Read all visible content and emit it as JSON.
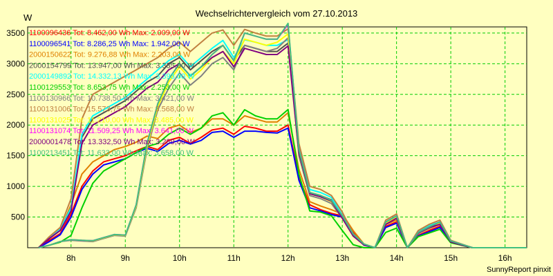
{
  "chart_data": {
    "type": "line",
    "title": "Wechselrichtervergleich vom 27.10.2013",
    "ylabel": "W",
    "footer": "SunnyReport pinxit",
    "ylim": [
      0,
      3600
    ],
    "xlim": [
      7.2,
      16.4
    ],
    "yticks": [
      500,
      1000,
      1500,
      2000,
      2500,
      3000,
      3500
    ],
    "xticks": [
      {
        "value": 8,
        "label": "8h"
      },
      {
        "value": 9,
        "label": "9h"
      },
      {
        "value": 10,
        "label": "10h"
      },
      {
        "value": 11,
        "label": "11h"
      },
      {
        "value": 12,
        "label": "12h"
      },
      {
        "value": 13,
        "label": "13h"
      },
      {
        "value": 14,
        "label": "14h"
      },
      {
        "value": 15,
        "label": "15h"
      },
      {
        "value": 16,
        "label": "16h"
      }
    ],
    "grid": true,
    "legend_position": "top-left",
    "x": [
      7.4,
      7.6,
      7.8,
      8.0,
      8.2,
      8.4,
      8.6,
      8.8,
      9.0,
      9.2,
      9.4,
      9.6,
      9.8,
      10.0,
      10.2,
      10.4,
      10.6,
      10.8,
      11.0,
      11.2,
      11.4,
      11.6,
      11.8,
      12.0,
      12.2,
      12.4,
      12.6,
      12.8,
      13.0,
      13.2,
      13.4,
      13.6,
      13.8,
      14.0,
      14.2,
      14.4,
      14.6,
      14.8,
      15.0,
      15.2,
      15.4,
      15.6,
      15.8,
      16.0,
      16.2,
      16.4
    ],
    "series": [
      {
        "name": "1100096436",
        "label": "1100096436 Tot: 8.462,00 Wh Max: 2.009,00 W",
        "color": "#ff0000",
        "values": [
          0,
          120,
          230,
          550,
          1000,
          1250,
          1400,
          1450,
          1500,
          1580,
          1650,
          1600,
          1750,
          1800,
          1700,
          1800,
          1920,
          1950,
          1850,
          1980,
          1950,
          1900,
          1900,
          2000,
          1150,
          700,
          620,
          560,
          520,
          250,
          50,
          0,
          350,
          420,
          0,
          200,
          280,
          350,
          100,
          50,
          0,
          0,
          0,
          0,
          0,
          0
        ]
      },
      {
        "name": "1100096541",
        "label": "1100096541 Tot: 8.286,25 Wh Max: 1.942,00 W",
        "color": "#0000ff",
        "values": [
          0,
          100,
          210,
          500,
          950,
          1200,
          1350,
          1400,
          1450,
          1550,
          1620,
          1570,
          1700,
          1750,
          1690,
          1750,
          1880,
          1900,
          1800,
          1900,
          1900,
          1880,
          1870,
          1950,
          1100,
          650,
          600,
          540,
          500,
          230,
          40,
          0,
          330,
          400,
          0,
          190,
          260,
          330,
          90,
          40,
          0,
          0,
          0,
          0,
          0,
          0
        ]
      },
      {
        "name": "2000150622",
        "label": "2000150622 Tot: 9.276,88 Wh Max: 2.203,00 W",
        "color": "#e08000",
        "values": [
          0,
          150,
          280,
          700,
          1200,
          1400,
          1500,
          1600,
          1650,
          1720,
          1820,
          1780,
          1950,
          2000,
          1880,
          1950,
          2100,
          2100,
          2000,
          2150,
          2100,
          2050,
          2050,
          2200,
          1280,
          750,
          680,
          620,
          550,
          280,
          60,
          0,
          380,
          450,
          0,
          230,
          310,
          380,
          120,
          50,
          0,
          0,
          0,
          0,
          0,
          0
        ]
      },
      {
        "name": "2000154799",
        "label": "2000154799 Tot: 13.947,00 Wh Max: 3.335,00 W",
        "color": "#505050",
        "values": [
          0,
          160,
          300,
          650,
          1800,
          2100,
          2200,
          2300,
          2400,
          2550,
          2700,
          2800,
          3000,
          3100,
          2900,
          3050,
          3200,
          3300,
          3050,
          3300,
          3250,
          3200,
          3200,
          3335,
          1600,
          900,
          850,
          780,
          500,
          200,
          50,
          0,
          400,
          500,
          0,
          250,
          350,
          400,
          100,
          50,
          0,
          0,
          0,
          0,
          0,
          0
        ]
      },
      {
        "name": "2000149892",
        "label": "2000149892 Tot: 14.332,13 Wh Max: 3.393,00 W",
        "color": "#00ffff",
        "values": [
          0,
          170,
          300,
          650,
          1850,
          2150,
          2250,
          2350,
          2450,
          2600,
          2750,
          2900,
          3050,
          3150,
          2950,
          3100,
          3250,
          3380,
          3100,
          3390,
          3350,
          3300,
          3300,
          3393,
          1650,
          950,
          900,
          820,
          530,
          210,
          55,
          0,
          420,
          520,
          0,
          260,
          360,
          420,
          110,
          55,
          0,
          0,
          0,
          0,
          0,
          0
        ]
      },
      {
        "name": "1100129553",
        "label": "1100129553 Tot: 8.653,75 Wh Max: 2.253,00 W",
        "color": "#00d000",
        "values": [
          0,
          40,
          90,
          200,
          650,
          1050,
          1250,
          1350,
          1450,
          1550,
          1650,
          1700,
          1850,
          1950,
          1850,
          1950,
          2150,
          2200,
          2000,
          2250,
          2150,
          2100,
          2100,
          2253,
          1200,
          600,
          580,
          520,
          280,
          50,
          0,
          0,
          250,
          320,
          0,
          180,
          240,
          300,
          80,
          40,
          0,
          0,
          0,
          0,
          0,
          0
        ]
      },
      {
        "name": "1100130966",
        "label": "1100130966 Tot: 10.738,50 Wh Max: 3.421,00 W",
        "color": "#808080",
        "values": [
          0,
          40,
          100,
          120,
          110,
          100,
          150,
          200,
          190,
          650,
          1600,
          2250,
          2600,
          2850,
          2650,
          2800,
          3000,
          3100,
          2900,
          3300,
          3250,
          3200,
          3250,
          3421,
          1500,
          850,
          800,
          720,
          480,
          200,
          50,
          0,
          380,
          480,
          0,
          230,
          320,
          380,
          100,
          50,
          0,
          0,
          0,
          0,
          0,
          0
        ]
      },
      {
        "name": "1100131006",
        "label": "1100131006 Tot: 15.573,75 Wh Max: 3.568,00 W",
        "color": "#c08040",
        "values": [
          0,
          180,
          330,
          800,
          2100,
          2500,
          2600,
          2700,
          2800,
          2900,
          3000,
          3100,
          3250,
          3350,
          3200,
          3350,
          3500,
          3550,
          3300,
          3560,
          3500,
          3450,
          3450,
          3568,
          1700,
          1000,
          950,
          850,
          580,
          230,
          60,
          0,
          450,
          550,
          0,
          280,
          380,
          450,
          120,
          60,
          0,
          0,
          0,
          0,
          0,
          0
        ]
      },
      {
        "name": "1100131025",
        "label": "1100131025 Tot: 11.210,00 Wh Max: 3.485,00 W",
        "color": "#ffff00",
        "values": [
          0,
          40,
          100,
          130,
          120,
          110,
          160,
          210,
          200,
          680,
          1650,
          2300,
          2700,
          2950,
          2750,
          2900,
          3100,
          3200,
          3000,
          3400,
          3350,
          3300,
          3350,
          3485,
          1550,
          880,
          830,
          750,
          500,
          210,
          55,
          0,
          400,
          500,
          0,
          240,
          330,
          400,
          105,
          50,
          0,
          0,
          0,
          0,
          0,
          0
        ]
      },
      {
        "name": "1100131074",
        "label": "1100131074 Tot: 11.509,25 Wh Max: 3.641,00 W",
        "color": "#ff00ff",
        "values": [
          0,
          40,
          100,
          130,
          120,
          115,
          165,
          215,
          205,
          700,
          1700,
          2350,
          2750,
          3000,
          2800,
          2950,
          3150,
          3300,
          3050,
          3500,
          3450,
          3400,
          3400,
          3641,
          1600,
          900,
          850,
          770,
          520,
          220,
          60,
          0,
          420,
          520,
          0,
          250,
          340,
          420,
          110,
          55,
          0,
          0,
          0,
          0,
          0,
          0
        ]
      },
      {
        "name": "2000001478",
        "label": "2000001478 Tot: 13.332,50 Wh Max: 3.289,00 W",
        "color": "#800080",
        "values": [
          0,
          150,
          280,
          600,
          1700,
          2000,
          2100,
          2200,
          2300,
          2450,
          2600,
          2700,
          2900,
          3000,
          2800,
          2950,
          3100,
          3200,
          2950,
          3250,
          3200,
          3150,
          3150,
          3289,
          1550,
          880,
          830,
          760,
          480,
          190,
          45,
          0,
          380,
          480,
          0,
          240,
          330,
          380,
          95,
          45,
          0,
          0,
          0,
          0,
          0,
          0
        ]
      },
      {
        "name": "1100213451",
        "label": "1100213451 Tot: 11.633,00 Wh Max: 3.658,00 W",
        "color": "#40c080",
        "values": [
          0,
          40,
          100,
          130,
          120,
          115,
          165,
          215,
          205,
          700,
          1700,
          2350,
          2750,
          3000,
          2800,
          2950,
          3150,
          3300,
          3050,
          3500,
          3450,
          3400,
          3400,
          3658,
          1600,
          900,
          850,
          770,
          520,
          220,
          60,
          0,
          420,
          520,
          0,
          250,
          340,
          420,
          110,
          55,
          0,
          0,
          0,
          0,
          0,
          0
        ]
      }
    ]
  }
}
